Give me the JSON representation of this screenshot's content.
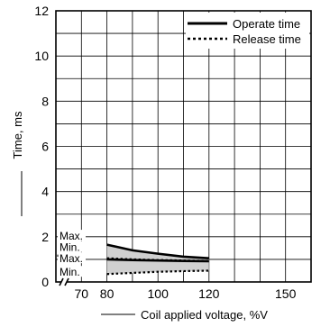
{
  "chart_data": {
    "type": "line",
    "xlabel": "Coil applied voltage, %V",
    "ylabel": "Time, ms",
    "xlim": [
      60,
      160
    ],
    "ylim": [
      0,
      12
    ],
    "x_ticks": [
      70,
      80,
      100,
      120,
      150
    ],
    "y_ticks": [
      0,
      2,
      4,
      6,
      8,
      10,
      12
    ],
    "grid": true,
    "axis_break": true,
    "legend": {
      "placement": "top-right",
      "entries": [
        {
          "name": "Operate time",
          "style": "solid"
        },
        {
          "name": "Release time",
          "style": "dotted"
        }
      ]
    },
    "series": [
      {
        "name": "Operate time",
        "bound": "Max.",
        "style": "solid",
        "x": [
          80,
          90,
          100,
          110,
          120
        ],
        "values": [
          1.65,
          1.4,
          1.25,
          1.12,
          1.05
        ]
      },
      {
        "name": "Operate time",
        "bound": "Min.",
        "style": "solid",
        "x": [
          80,
          90,
          100,
          110,
          120
        ],
        "values": [
          1.0,
          0.97,
          0.95,
          0.93,
          0.92
        ]
      },
      {
        "name": "Release time",
        "bound": "Max.",
        "style": "dotted",
        "x": [
          80,
          90,
          100,
          110,
          120
        ],
        "values": [
          1.05,
          1.0,
          0.97,
          0.95,
          0.93
        ]
      },
      {
        "name": "Release time",
        "bound": "Min.",
        "style": "dotted",
        "x": [
          80,
          90,
          100,
          110,
          120
        ],
        "values": [
          0.35,
          0.4,
          0.45,
          0.48,
          0.5
        ]
      }
    ],
    "annotations": [
      {
        "text": "Max.",
        "y": 1.95
      },
      {
        "text": "Min.",
        "y": 1.45
      },
      {
        "text": "Max.",
        "y": 0.95
      },
      {
        "text": "Min.",
        "y": 0.35
      }
    ]
  },
  "colors": {
    "band": "#d0d0d0",
    "line": "#000000",
    "grid": "#000000"
  }
}
